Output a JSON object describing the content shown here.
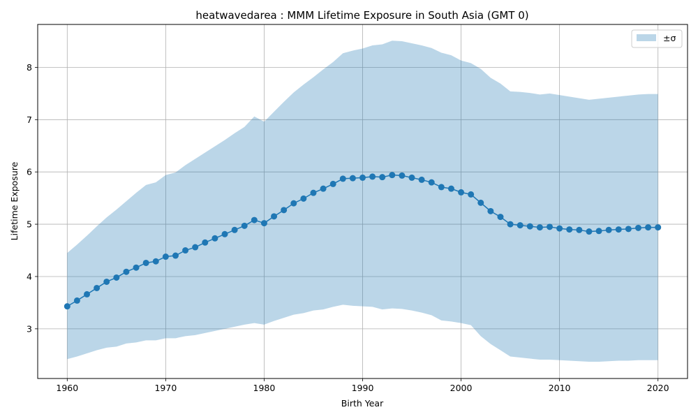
{
  "chart_data": {
    "type": "line",
    "title": "heatwavedarea : MMM Lifetime Exposure in South Asia (GMT 0)",
    "xlabel": "Birth Year",
    "ylabel": "Lifetime Exposure",
    "xlim": [
      1957,
      2023
    ],
    "ylim": [
      2.05,
      8.82
    ],
    "xticks": [
      1960,
      1970,
      1980,
      1990,
      2000,
      2010,
      2020
    ],
    "yticks": [
      3,
      4,
      5,
      6,
      7,
      8
    ],
    "grid": true,
    "legend": {
      "position": "top-right",
      "entries": [
        "±σ"
      ]
    },
    "colors": {
      "line": "#1f77b4",
      "band": "#1f77b4",
      "band_opacity": 0.3,
      "grid": "#b0b0b0"
    },
    "x": [
      1960,
      1961,
      1962,
      1963,
      1964,
      1965,
      1966,
      1967,
      1968,
      1969,
      1970,
      1971,
      1972,
      1973,
      1974,
      1975,
      1976,
      1977,
      1978,
      1979,
      1980,
      1981,
      1982,
      1983,
      1984,
      1985,
      1986,
      1987,
      1988,
      1989,
      1990,
      1991,
      1992,
      1993,
      1994,
      1995,
      1996,
      1997,
      1998,
      1999,
      2000,
      2001,
      2002,
      2003,
      2004,
      2005,
      2006,
      2007,
      2008,
      2009,
      2010,
      2011,
      2012,
      2013,
      2014,
      2015,
      2016,
      2017,
      2018,
      2019,
      2020
    ],
    "series": [
      {
        "values": [
          3.43,
          3.54,
          3.66,
          3.78,
          3.9,
          3.98,
          4.09,
          4.17,
          4.26,
          4.29,
          4.38,
          4.4,
          4.5,
          4.56,
          4.65,
          4.73,
          4.81,
          4.89,
          4.97,
          5.08,
          5.02,
          5.15,
          5.27,
          5.4,
          5.49,
          5.6,
          5.68,
          5.77,
          5.87,
          5.88,
          5.89,
          5.91,
          5.9,
          5.94,
          5.93,
          5.89,
          5.85,
          5.8,
          5.71,
          5.68,
          5.61,
          5.57,
          5.41,
          5.25,
          5.14,
          5.0,
          4.98,
          4.96,
          4.94,
          4.95,
          4.92,
          4.9,
          4.89,
          4.86,
          4.87,
          4.89,
          4.9,
          4.91,
          4.93,
          4.94,
          4.94
        ]
      }
    ],
    "band": {
      "name": "±σ",
      "lower": [
        2.42,
        2.47,
        2.53,
        2.59,
        2.64,
        2.66,
        2.72,
        2.74,
        2.78,
        2.78,
        2.82,
        2.82,
        2.86,
        2.88,
        2.92,
        2.96,
        3.0,
        3.04,
        3.08,
        3.11,
        3.08,
        3.15,
        3.21,
        3.27,
        3.3,
        3.35,
        3.37,
        3.42,
        3.46,
        3.44,
        3.43,
        3.42,
        3.37,
        3.39,
        3.38,
        3.35,
        3.31,
        3.26,
        3.16,
        3.14,
        3.11,
        3.07,
        2.86,
        2.71,
        2.59,
        2.47,
        2.45,
        2.43,
        2.41,
        2.41,
        2.4,
        2.39,
        2.38,
        2.37,
        2.37,
        2.38,
        2.39,
        2.39,
        2.4,
        2.4,
        2.4
      ],
      "upper": [
        4.45,
        4.61,
        4.78,
        4.96,
        5.13,
        5.28,
        5.44,
        5.6,
        5.75,
        5.8,
        5.94,
        5.99,
        6.13,
        6.25,
        6.37,
        6.49,
        6.61,
        6.74,
        6.86,
        7.06,
        6.96,
        7.15,
        7.34,
        7.52,
        7.67,
        7.81,
        7.96,
        8.1,
        8.27,
        8.32,
        8.36,
        8.42,
        8.44,
        8.51,
        8.5,
        8.46,
        8.42,
        8.37,
        8.28,
        8.23,
        8.13,
        8.08,
        7.97,
        7.8,
        7.69,
        7.54,
        7.53,
        7.51,
        7.48,
        7.5,
        7.47,
        7.44,
        7.41,
        7.38,
        7.4,
        7.42,
        7.44,
        7.46,
        7.48,
        7.49,
        7.49
      ]
    }
  }
}
